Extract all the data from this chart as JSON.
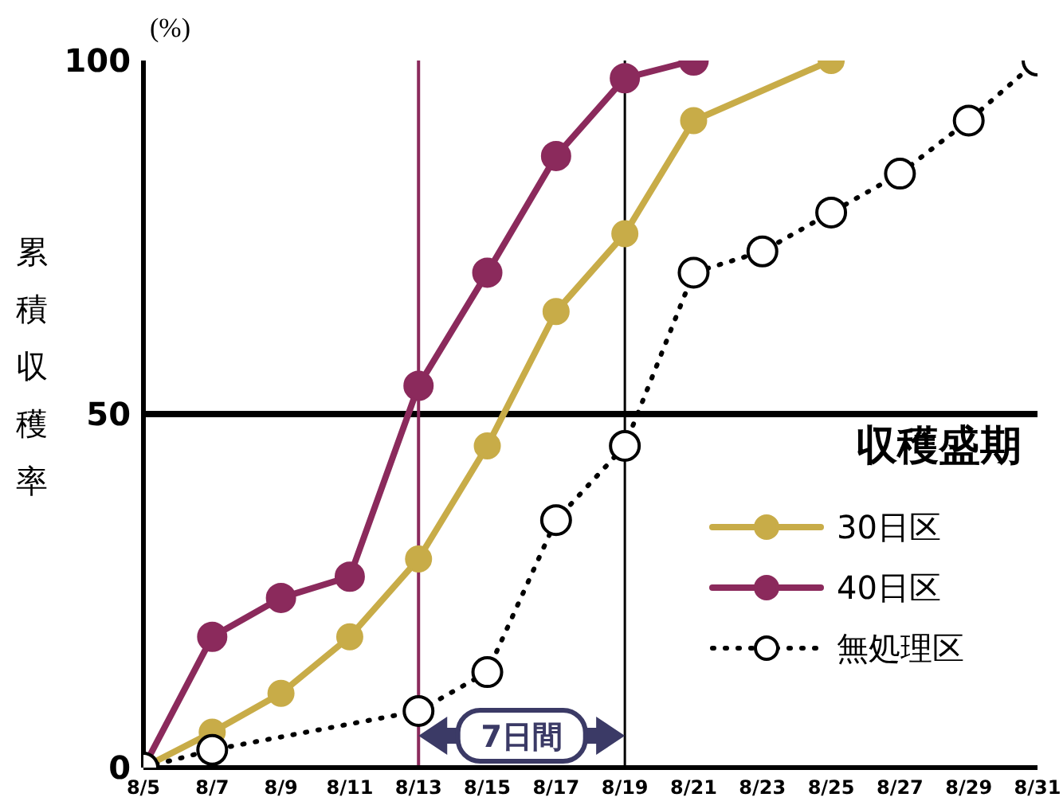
{
  "chart_data": {
    "type": "line",
    "ylabel": "累積収穫率",
    "categories": [
      "8/5",
      "8/7",
      "8/9",
      "8/11",
      "8/13",
      "8/15",
      "8/17",
      "8/19",
      "8/21",
      "8/23",
      "8/25",
      "8/27",
      "8/29",
      "8/31"
    ],
    "series": [
      {
        "name": "30日区",
        "color": "#c8ac48",
        "line_style": "solid",
        "values": [
          0,
          5,
          10.5,
          18.5,
          29.5,
          45.5,
          64.5,
          75.5,
          91.5,
          null,
          100,
          null,
          null,
          null
        ]
      },
      {
        "name": "40日区",
        "color": "#8b2a5c",
        "line_style": "solid",
        "values": [
          0,
          18.5,
          24,
          27,
          54,
          70,
          86.5,
          97.5,
          100,
          null,
          null,
          null,
          null,
          null
        ]
      },
      {
        "name": "無処理区",
        "color": "#000000",
        "line_style": "dotted",
        "values": [
          0,
          2.5,
          null,
          null,
          8,
          13.5,
          35,
          45.5,
          70,
          73,
          78.5,
          84,
          91.5,
          100
        ]
      }
    ],
    "ylim": [
      0,
      100
    ],
    "yticks": [
      0,
      50,
      100
    ],
    "marker": "circle",
    "legend": "right",
    "ref_lines": [
      {
        "axis": "y",
        "value": 50,
        "label": "収穫盛期",
        "color": "#000000"
      },
      {
        "axis": "x",
        "value": "8/13",
        "color": "#8b2a5c"
      },
      {
        "axis": "x",
        "value": "8/19",
        "color": "#000000"
      }
    ],
    "annotations": [
      "(%)",
      "7日間"
    ]
  }
}
